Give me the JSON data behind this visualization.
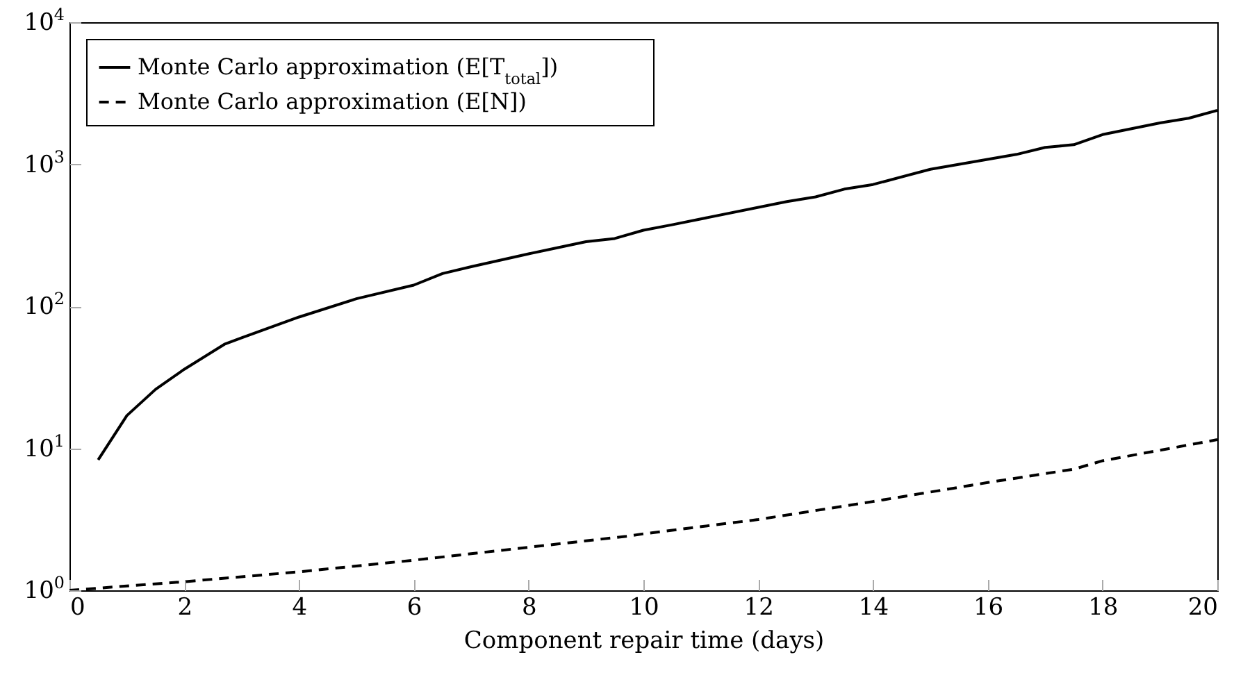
{
  "chart_data": {
    "type": "line",
    "xlabel": "Component repair time (days)",
    "legend": "top left",
    "grid": false,
    "log": "y",
    "xlim": [
      0,
      20
    ],
    "xticks": [
      0,
      2,
      4,
      6,
      8,
      10,
      12,
      14,
      16,
      18,
      20
    ],
    "ylim": [
      1,
      10000
    ],
    "yticks": [
      {
        "value": 1,
        "label": "10$^{0}$"
      },
      {
        "value": 10,
        "label": "10$^{1}$"
      },
      {
        "value": 100,
        "label": "10$^{2}$"
      },
      {
        "value": 1000,
        "label": "10$^{3}$"
      },
      {
        "value": 10000,
        "label": "10$^{4}$"
      }
    ],
    "series": [
      {
        "name": "Monte Carlo approximation (E[T$_{total}$])",
        "color": "#000000",
        "line_style": "solid",
        "x": [
          0.5,
          1,
          1.5,
          2,
          2.7,
          3,
          4,
          5,
          6,
          6.5,
          7,
          8,
          8.5,
          9,
          9.5,
          10,
          10.5,
          12.5,
          13,
          13.5,
          14,
          15,
          16.5,
          17,
          17.5,
          18,
          19,
          19.5,
          20
        ],
        "values": [
          8.3,
          17,
          26,
          36,
          54,
          60,
          84,
          113,
          141,
          170,
          190,
          234,
          258,
          285,
          300,
          343,
          375,
          546,
          589,
          668,
          720,
          922,
          1173,
          1313,
          1374,
          1618,
          1954,
          2108,
          2395
        ]
      },
      {
        "name": "Monte Carlo approximation (E[N])",
        "color": "#000000",
        "line_style": "dashed",
        "x": [
          0,
          2,
          4,
          6,
          8,
          9.7,
          10,
          12,
          14,
          16,
          17.5,
          18,
          20
        ],
        "values": [
          1.0,
          1.15,
          1.35,
          1.63,
          2.01,
          2.4,
          2.5,
          3.15,
          4.22,
          5.74,
          7.13,
          8.17,
          11.5
        ]
      }
    ]
  }
}
